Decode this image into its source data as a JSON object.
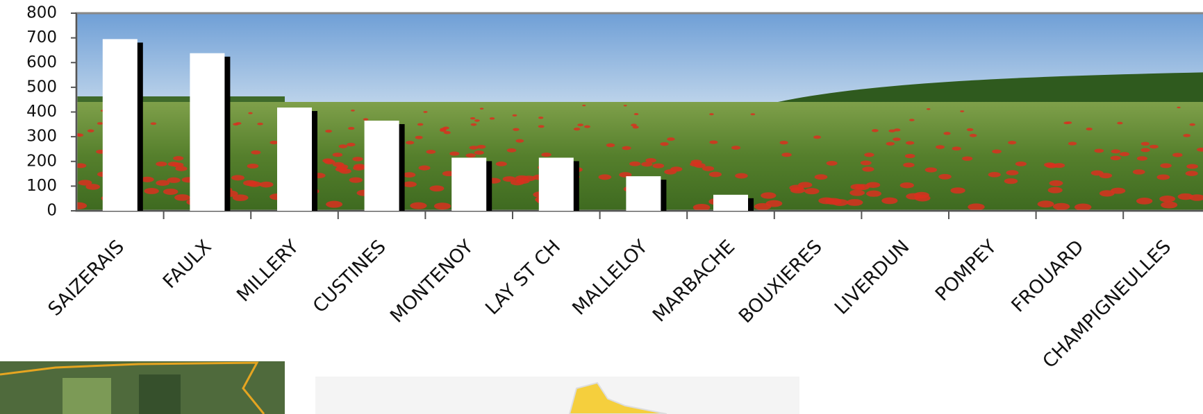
{
  "chart_data": {
    "type": "bar",
    "categories": [
      "SAIZERAIS",
      "FAULX",
      "MILLERY",
      "CUSTINES",
      "MONTENOY",
      "LAY ST CH",
      "MALLELOY",
      "MARBACHE",
      "BOUXIERES",
      "LIVERDUN",
      "POMPEY",
      "FROUARD",
      "CHAMPIGNEULLES"
    ],
    "values": [
      695,
      638,
      418,
      365,
      215,
      215,
      140,
      65,
      0,
      0,
      0,
      0,
      0
    ],
    "color": "#ffffff",
    "ylim": [
      0,
      800
    ],
    "yticks": [
      0,
      100,
      200,
      300,
      400,
      500,
      600,
      700,
      800
    ]
  }
}
